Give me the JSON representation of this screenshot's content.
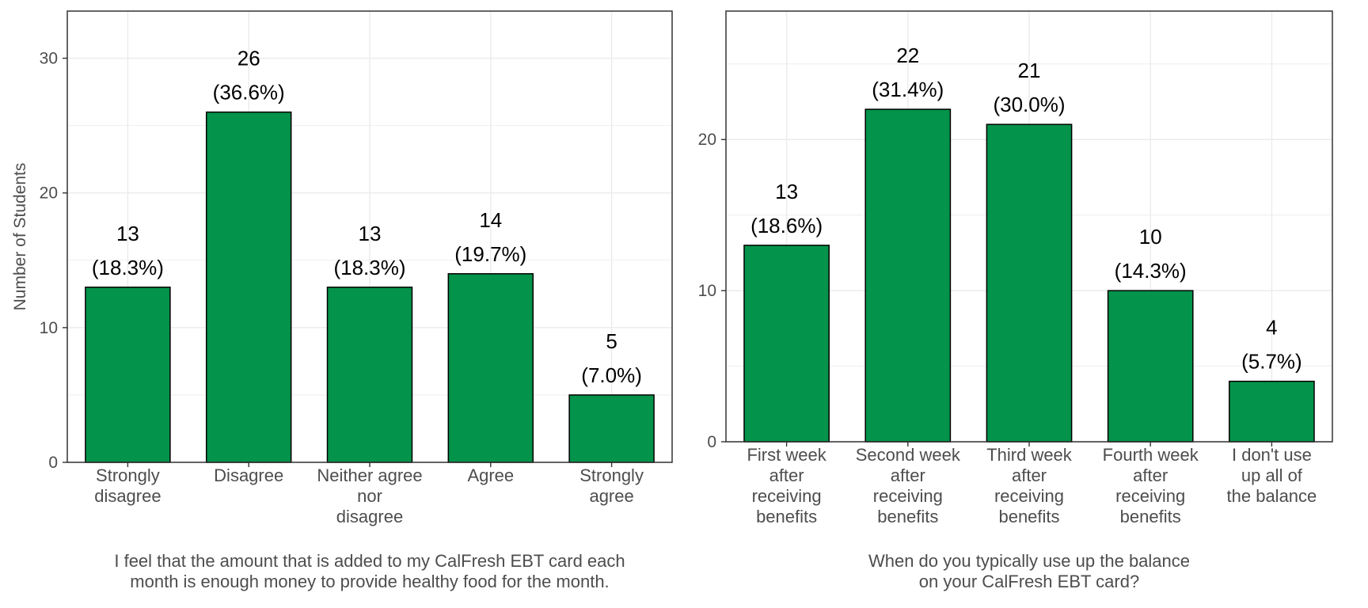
{
  "colors": {
    "bar": "#03934a",
    "panel_border": "#333333",
    "grid": "#ebebeb"
  },
  "chart_data": [
    {
      "type": "bar",
      "title": "",
      "ylabel": "Number of Students",
      "xlabel": "I feel that the amount that is added to my CalFresh EBT card each\nmonth is enough money to provide healthy food for the month.",
      "categories": [
        "Strongly\ndisagree",
        "Disagree",
        "Neither agree\nnor\ndisagree",
        "Agree",
        "Strongly\nagree"
      ],
      "values": [
        13,
        26,
        13,
        14,
        5
      ],
      "percent_labels": [
        "(18.3%)",
        "(36.6%)",
        "(18.3%)",
        "(19.7%)",
        "(7.0%)"
      ],
      "yticks": [
        0,
        10,
        20,
        30
      ],
      "ylim": [
        0,
        33.5
      ],
      "grid": true
    },
    {
      "type": "bar",
      "title": "",
      "ylabel": "",
      "xlabel": "When do you typically use up the balance\non your CalFresh EBT card?",
      "categories": [
        "First week\nafter\nreceiving\nbenefits",
        "Second week\nafter\nreceiving\nbenefits",
        "Third week\nafter\nreceiving\nbenefits",
        "Fourth week\nafter\nreceiving\nbenefits",
        "I don't use\nup all of\nthe balance"
      ],
      "values": [
        13,
        22,
        21,
        10,
        4
      ],
      "percent_labels": [
        "(18.6%)",
        "(31.4%)",
        "(30.0%)",
        "(14.3%)",
        "(5.7%)"
      ],
      "yticks": [
        0,
        10,
        20
      ],
      "ylim": [
        0,
        28.5
      ],
      "grid": true
    }
  ]
}
